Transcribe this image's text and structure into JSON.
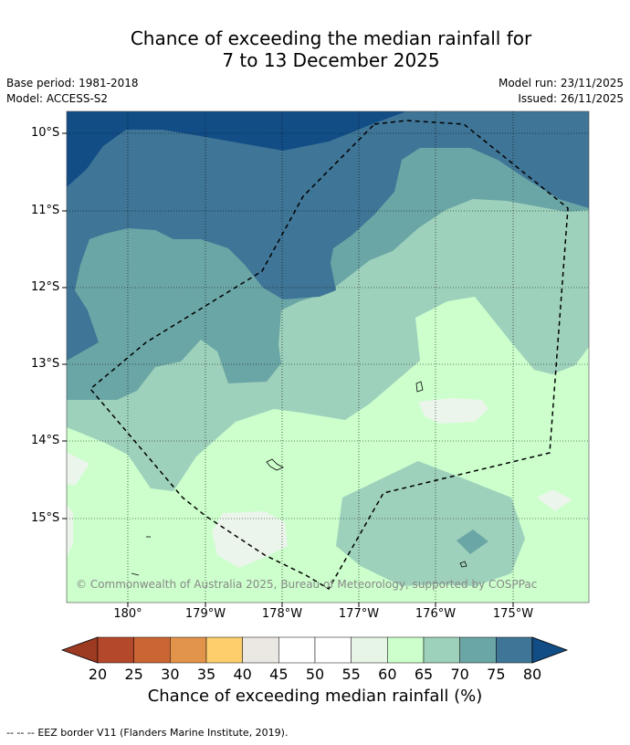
{
  "title": {
    "line1": "Chance of exceeding the median rainfall for",
    "line2": "7 to 13 December 2025"
  },
  "meta": {
    "base_period": "Base period: 1981-2018",
    "model": "Model: ACCESS-S2",
    "model_run": "Model run: 23/11/2025",
    "issued": "Issued: 26/11/2025"
  },
  "map": {
    "lat_labels": [
      "10°S",
      "11°S",
      "12°S",
      "13°S",
      "14°S",
      "15°S"
    ],
    "lon_labels": [
      "180°",
      "179°W",
      "178°W",
      "177°W",
      "176°W",
      "175°W"
    ],
    "copyright": "© Commonwealth of Australia 2025, Bureau of Meteorology, supported by COSPPac",
    "legend_line": "EEZ border V11 (Flanders Marine Institute, 2019)."
  },
  "colorbar": {
    "title": "Chance of exceeding median rainfall (%)",
    "ticks": [
      "20",
      "25",
      "30",
      "35",
      "40",
      "45",
      "50",
      "55",
      "60",
      "65",
      "70",
      "75",
      "80"
    ],
    "colors": [
      "#9c3a22",
      "#b4482a",
      "#cc6534",
      "#e2944a",
      "#fdcf6c",
      "#ebe7e2",
      "#ffffff",
      "#ffffff",
      "#e6f5e6",
      "#ccffcc",
      "#9ed1bb",
      "#6ba6a6",
      "#3f7596",
      "#124d86"
    ]
  },
  "footer_prefix": "--  --  --"
}
